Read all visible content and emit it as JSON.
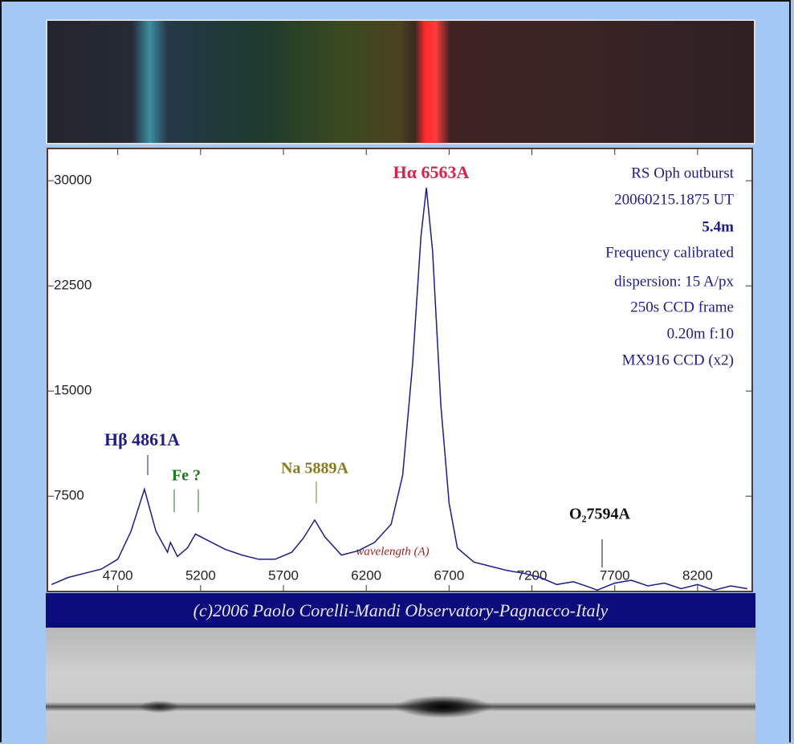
{
  "chart_data": {
    "type": "line",
    "footer": "(c)2006 Paolo Corelli-Mandi Observatory-Pagnacco-Italy",
    "x_label": "wavelength (A)",
    "annotations": [
      "Hα 6563A",
      "Hβ 4861A",
      "Fe ?",
      "Na 5889A",
      "O₂7594A"
    ],
    "info": [
      "RS Oph outburst",
      "20060215.1875 UT",
      "5.4m",
      "Frequency calibrated",
      "dispersion: 15 A/px",
      "250s CCD frame",
      "0.20m f:10",
      "MX916 CCD (x2)"
    ],
    "x": [
      4300,
      4400,
      4500,
      4600,
      4700,
      4780,
      4861,
      4930,
      5000,
      5018,
      5060,
      5120,
      5169,
      5250,
      5350,
      5450,
      5550,
      5650,
      5750,
      5820,
      5889,
      5950,
      6050,
      6150,
      6250,
      6350,
      6420,
      6480,
      6530,
      6563,
      6600,
      6650,
      6700,
      6750,
      6850,
      6950,
      7050,
      7150,
      7250,
      7350,
      7450,
      7550,
      7594,
      7700,
      7800,
      7900,
      8000,
      8100,
      8200,
      8300,
      8400,
      8500
    ],
    "values": [
      1200,
      1700,
      2000,
      2300,
      3000,
      5000,
      8000,
      5000,
      3500,
      4200,
      3200,
      3800,
      4800,
      4300,
      3700,
      3300,
      3000,
      3000,
      3500,
      4500,
      5800,
      4600,
      3300,
      3600,
      4200,
      5500,
      9000,
      17000,
      26000,
      29500,
      25000,
      14000,
      7000,
      3800,
      2800,
      2500,
      2200,
      2000,
      1700,
      1200,
      1400,
      1000,
      800,
      1300,
      1500,
      1100,
      1300,
      900,
      1200,
      800,
      1100,
      900
    ],
    "color": "#1c1c8a",
    "xlim": [
      4275,
      8530
    ],
    "xticks": [
      4700,
      5200,
      5700,
      6200,
      6700,
      7200,
      7700,
      8200
    ],
    "ylim": [
      700,
      32300
    ],
    "yticks": [
      7500,
      15000,
      22500,
      30000
    ]
  }
}
